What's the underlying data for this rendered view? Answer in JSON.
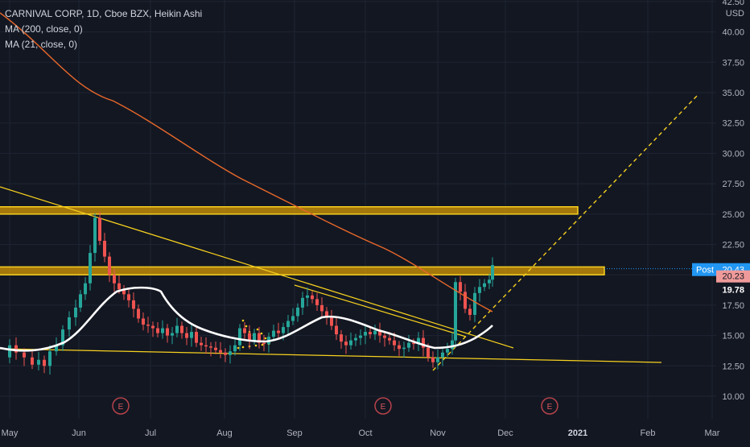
{
  "legend": {
    "title": "CARNIVAL CORP, 1D, Cboe BZX, Heikin Ashi",
    "ma200": "MA (200, close, 0)",
    "ma21": "MA (21, close, 0)"
  },
  "colors": {
    "background": "#131722",
    "bull": "#26a69a",
    "bear": "#ef5350",
    "ma200": "#e8682a",
    "ma21": "#ffffff",
    "drawing": "#f7d11e",
    "zone_fill": "#d79a06",
    "earnings": "#ef5350",
    "post_badge": "#2196f3",
    "last_badge": "#ef9a9a",
    "close_badge": "#131722"
  },
  "chart_data": {
    "type": "candlestick",
    "style": "Heikin Ashi",
    "symbol": "CARNIVAL CORP",
    "interval": "1D",
    "exchange": "Cboe BZX",
    "y_axis": {
      "unit": "USD",
      "range": [
        9.0,
        42.5
      ],
      "ticks": [
        "42.50",
        "40.00",
        "37.50",
        "35.00",
        "32.50",
        "30.00",
        "27.50",
        "25.00",
        "22.50",
        "20.00",
        "17.50",
        "15.00",
        "12.50",
        "10.00"
      ],
      "gridlines": true
    },
    "x_axis": {
      "ticks": [
        "May",
        "Jun",
        "Jul",
        "Aug",
        "Sep",
        "Oct",
        "Nov",
        "Dec",
        "2021",
        "Feb",
        "Mar"
      ]
    },
    "series_summary": {
      "start_price_approx": 13.5,
      "june_high_approx": 24.8,
      "late_october_low_approx": 12.6,
      "last_close_approx": 20.43
    },
    "horizontal_zones": [
      {
        "from": 25.0,
        "to": 25.6
      },
      {
        "from": 20.0,
        "to": 20.65
      }
    ],
    "trendlines": [
      {
        "from": [
          "Apr",
          27.2
        ],
        "to": [
          "Dec",
          14.0
        ]
      },
      {
        "from": [
          "Apr",
          14.0
        ],
        "to": [
          "Feb",
          12.9
        ]
      }
    ],
    "projection": {
      "from": [
        "Nov",
        12.3
      ],
      "to": [
        "Mar",
        34.8
      ],
      "dashed": true
    },
    "earnings_markers": [
      "Jun",
      "Oct",
      "Dec"
    ],
    "price_labels": [
      {
        "text": "Post",
        "value": "20.43"
      },
      {
        "value": "20.23"
      },
      {
        "value": "19.78"
      }
    ]
  }
}
